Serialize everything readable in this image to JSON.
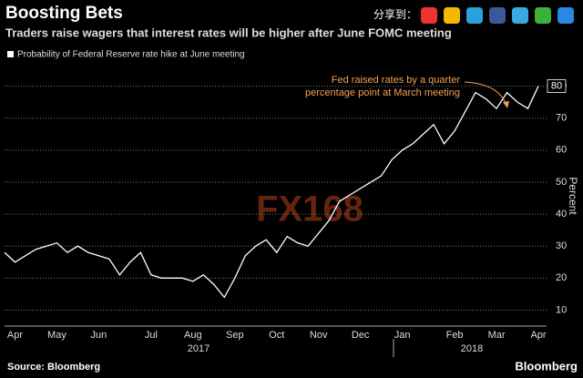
{
  "share_label": "分享到：",
  "chart_data": {
    "type": "line",
    "title": "Boosting Bets",
    "subtitle": "Traders raise wagers that interest rates will be higher after June FOMC meeting",
    "y_label": "Percent",
    "source": "Source: Bloomberg",
    "brand": "Bloomberg",
    "watermark": "FX168",
    "annotation": [
      "Fed raised rates by a quarter",
      "percentage point at March meeting"
    ],
    "annotation_color": "#f5a050",
    "year_labels": [
      "2017",
      "2018"
    ],
    "categories": [
      null,
      "Apr",
      null,
      null,
      null,
      "May",
      null,
      null,
      null,
      "Jun",
      null,
      null,
      null,
      null,
      "Jul",
      null,
      null,
      null,
      "Aug",
      null,
      null,
      null,
      "Sep",
      null,
      null,
      null,
      "Oct",
      null,
      null,
      null,
      "Nov",
      null,
      null,
      null,
      "Dec",
      null,
      null,
      null,
      "Jan",
      null,
      null,
      null,
      null,
      "Feb",
      null,
      null,
      null,
      "Mar",
      null,
      null,
      null,
      "Apr"
    ],
    "series": [
      {
        "name": "Probability of Federal Reserve rate hike at June meeting",
        "color": "#ffffff",
        "values": [
          28,
          25,
          27,
          29,
          30,
          31,
          28,
          30,
          28,
          27,
          26,
          21,
          25,
          28,
          21,
          20,
          20,
          20,
          19,
          21,
          18,
          14,
          20,
          27,
          30,
          32,
          28,
          33,
          31,
          30,
          34,
          38,
          44,
          46,
          48,
          50,
          52,
          57,
          60,
          62,
          65,
          68,
          62,
          66,
          72,
          78,
          76,
          73,
          78,
          75,
          73,
          80
        ]
      }
    ],
    "ylim": [
      5,
      87
    ],
    "yticks": [
      10,
      20,
      30,
      40,
      50,
      60,
      70,
      80
    ],
    "grid": true
  }
}
